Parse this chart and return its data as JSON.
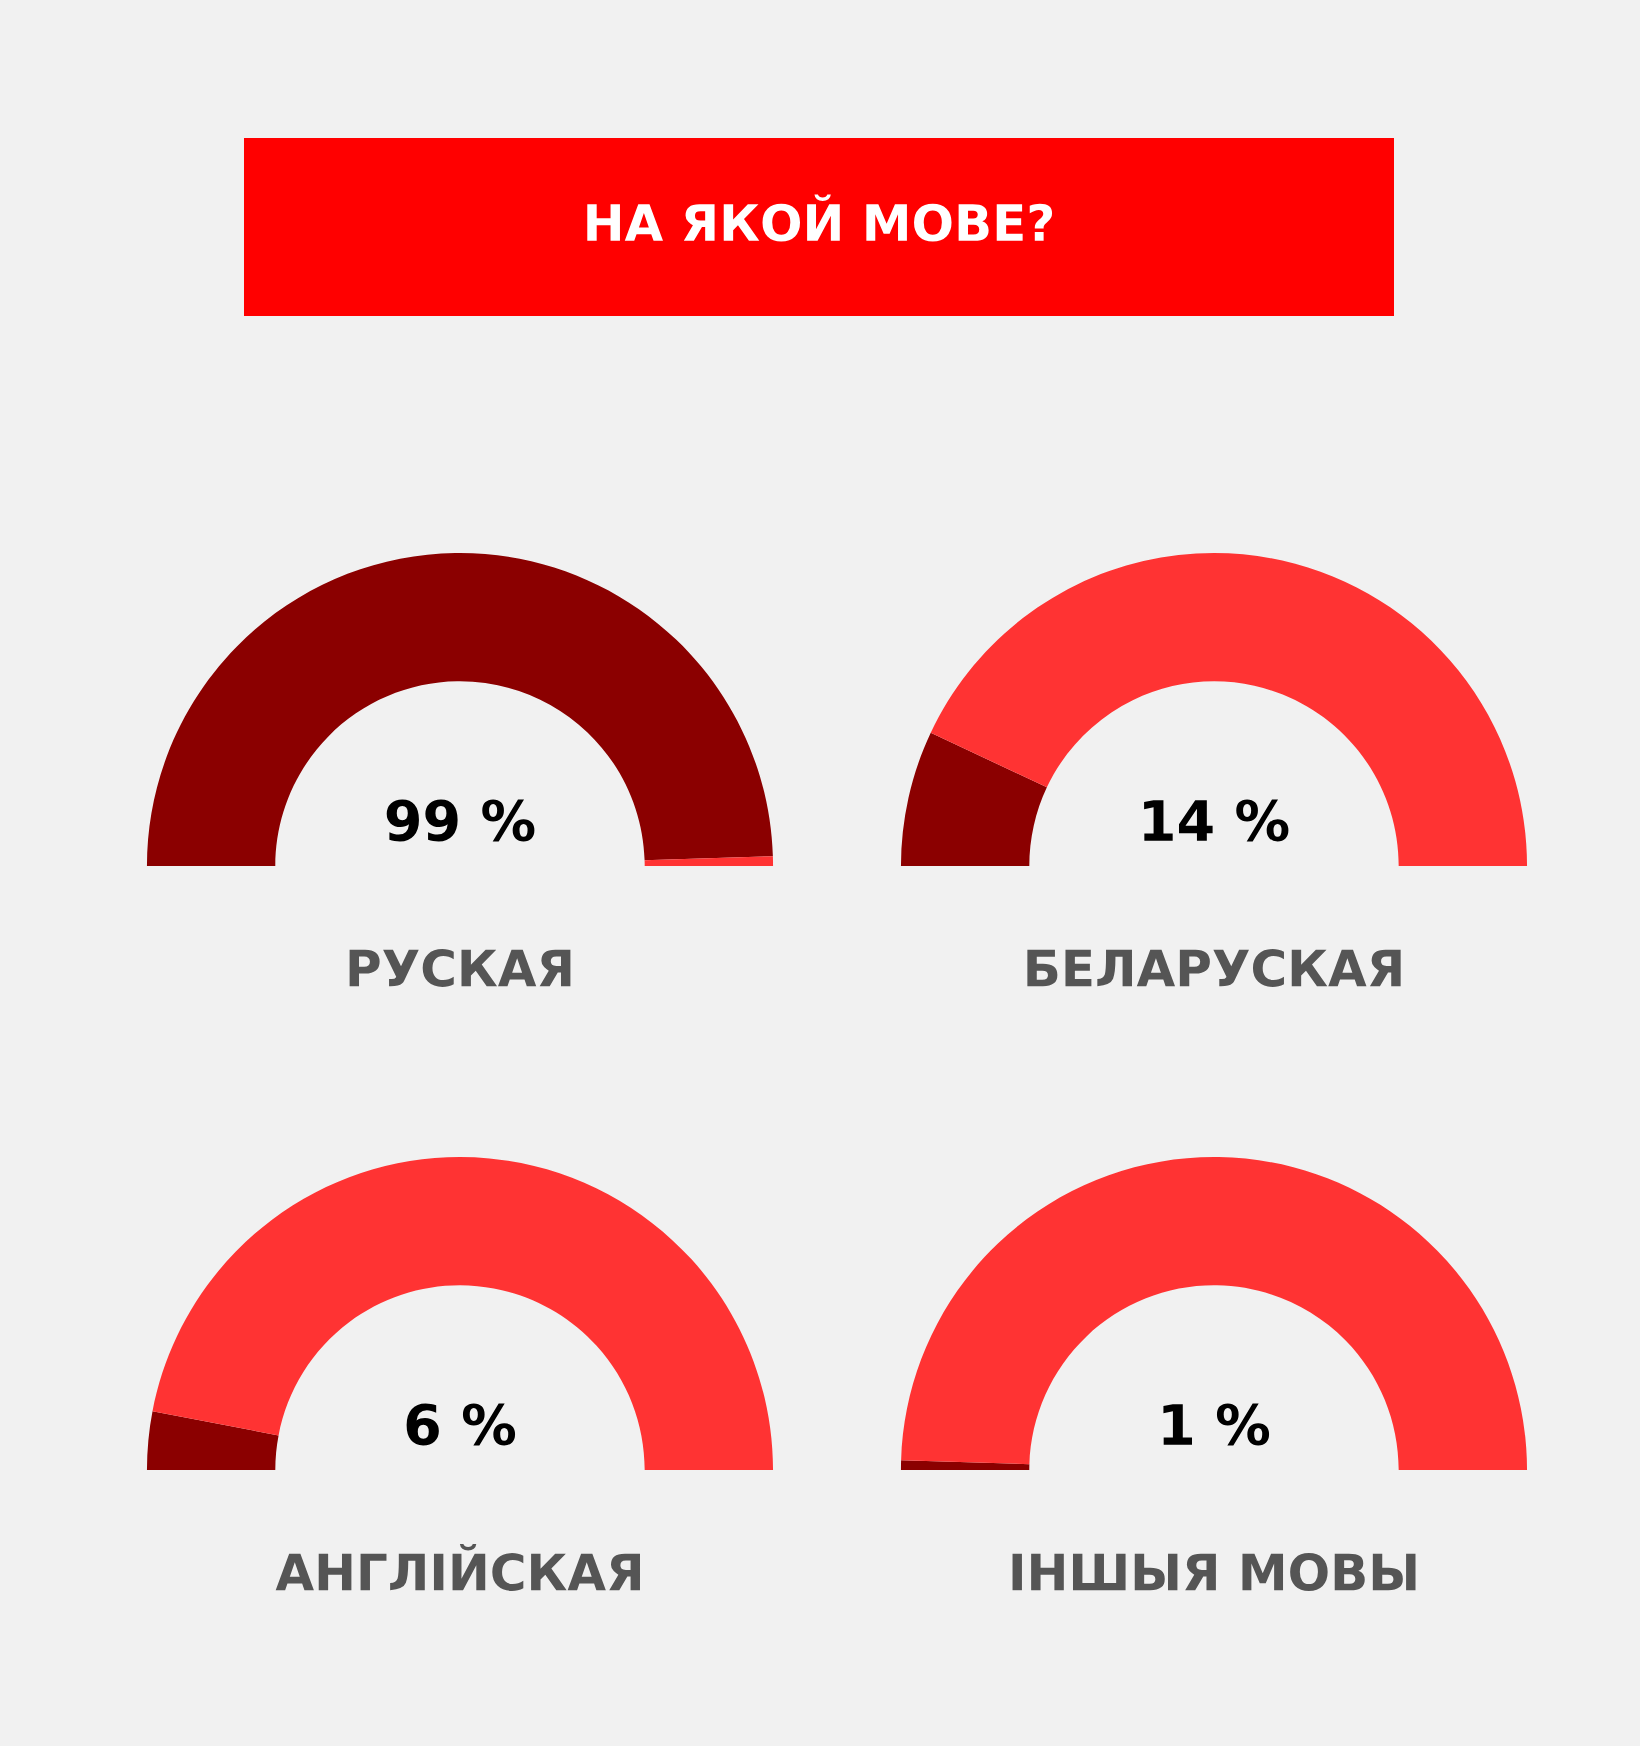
{
  "chart_data": [
    {
      "type": "donut",
      "title": "НА ЯКОЙ МОВЕ?",
      "xlabel": "РУСКАЯ",
      "categories": [
        null,
        null
      ],
      "values": [
        99,
        1
      ],
      "colors": [
        "#8b0000",
        "#ff3333"
      ],
      "annotations": [
        "99 %"
      ]
    },
    {
      "type": "donut",
      "xlabel": "БЕЛАРУСКАЯ",
      "categories": [
        null,
        null
      ],
      "values": [
        14,
        86
      ],
      "colors": [
        "#8b0000",
        "#ff3333"
      ],
      "annotations": [
        "14 %"
      ]
    },
    {
      "type": "donut",
      "xlabel": "АНГЛІЙСКАЯ",
      "categories": [
        null,
        null
      ],
      "values": [
        6,
        94
      ],
      "colors": [
        "#8b0000",
        "#ff3333"
      ],
      "annotations": [
        "6 %"
      ]
    },
    {
      "type": "donut",
      "xlabel": "ІНШЫЯ МОВЫ",
      "categories": [
        null,
        null
      ],
      "values": [
        1,
        99
      ],
      "colors": [
        "#8b0000",
        "#ff3333"
      ],
      "annotations": [
        "1 %"
      ]
    }
  ]
}
